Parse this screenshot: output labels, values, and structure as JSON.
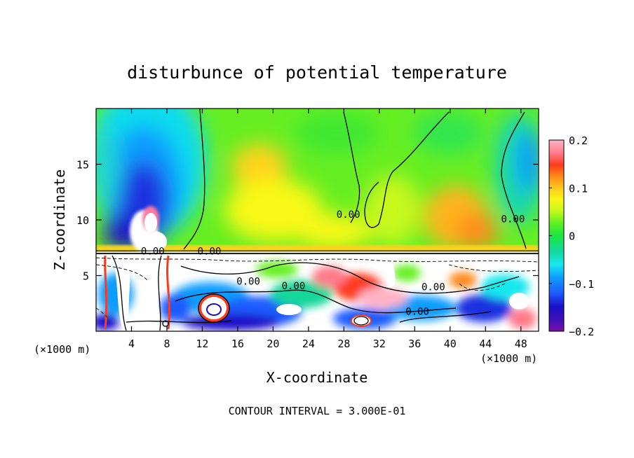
{
  "chart_data": {
    "type": "heatmap",
    "title": "disturbunce of potential temperature",
    "xlabel": "X-coordinate",
    "ylabel": "Z-coordinate",
    "x_unit_label_left": "(×1000 m)",
    "x_unit_label_right": "(×1000 m)",
    "x_ticks": [
      4,
      8,
      12,
      16,
      20,
      24,
      28,
      32,
      36,
      40,
      44,
      48
    ],
    "y_ticks": [
      5,
      10,
      15
    ],
    "xlim": [
      0,
      50
    ],
    "ylim": [
      0,
      20
    ],
    "colorbar": {
      "ticks": [
        0.2,
        0.1,
        0,
        -0.1,
        -0.2
      ],
      "tick_labels": [
        "0.2",
        "0.1",
        "0",
        "−0.1",
        "−0.2"
      ],
      "range": [
        -0.2,
        0.2
      ],
      "colors": [
        "#7a0fa8",
        "#1a10c8",
        "#1e5bff",
        "#0d9cff",
        "#16e8ee",
        "#14d79a",
        "#19e640",
        "#66f020",
        "#c8f81a",
        "#f8f814",
        "#ffc81e",
        "#ff8a1a",
        "#ff3a1a",
        "#ff1a1a",
        "#ff7a8a",
        "#ffb4c4"
      ]
    },
    "contour_interval_label": "CONTOUR INTERVAL = 3.000E-01",
    "contour_labels": [
      {
        "text": "0.00",
        "x": 6.4,
        "z": 7.2
      },
      {
        "text": "0.00",
        "x": 12.8,
        "z": 7.2
      },
      {
        "text": "0.00",
        "x": 17.2,
        "z": 4.5
      },
      {
        "text": "0.00",
        "x": 22.3,
        "z": 4.1
      },
      {
        "text": "0.00",
        "x": 28.5,
        "z": 10.5
      },
      {
        "text": "0.00",
        "x": 38.1,
        "z": 4.0
      },
      {
        "text": "0.00",
        "x": 36.3,
        "z": 1.8
      },
      {
        "text": "0.00",
        "x": 47.1,
        "z": 10.1
      }
    ],
    "inversion_height": 7.2
  }
}
